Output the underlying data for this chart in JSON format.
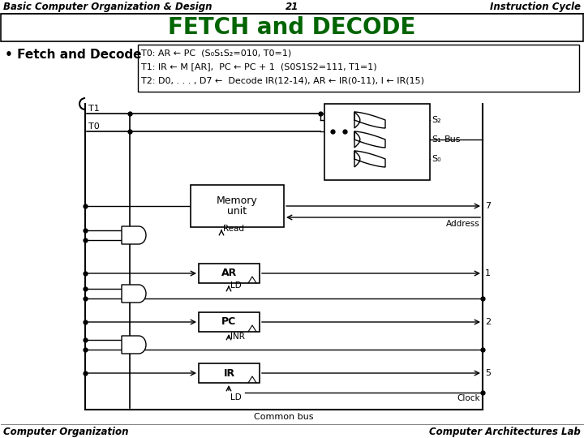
{
  "title_header": "Basic Computer Organization & Design",
  "title_number": "21",
  "title_right": "Instruction Cycle",
  "main_title": "FETCH and DECODE",
  "bullet_text": "• Fetch and Decode",
  "desc_lines": [
    "T0: AR ← PC  (S₀S₁S₂=010, T0=1)",
    "T1: IR ← M [AR],  PC ← PC + 1  (S0S1S2=111, T1=1)",
    "T2: D0, . . . , D7 ←  Decode IR(12-14), AR ← IR(0-11), I ← IR(15)"
  ],
  "footer_left": "Computer Organization",
  "footer_right": "Computer Architectures Lab",
  "bg_color": "#ffffff",
  "title_color": "#006400"
}
